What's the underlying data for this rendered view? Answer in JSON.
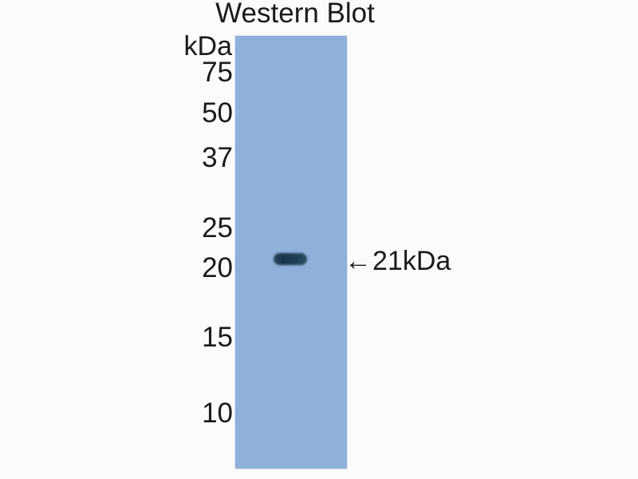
{
  "figure": {
    "title": "Western Blot",
    "unit_label": "kDa",
    "ladder_markers": [
      "75",
      "50",
      "37",
      "25",
      "20",
      "15",
      "10"
    ],
    "band_annotation": {
      "arrow": "←",
      "label": "21kDa"
    }
  },
  "colors": {
    "bg": "#fbfbfa",
    "lane": "#8fb0d9",
    "band": "#1f3d50",
    "text": "#1a1a1a"
  }
}
